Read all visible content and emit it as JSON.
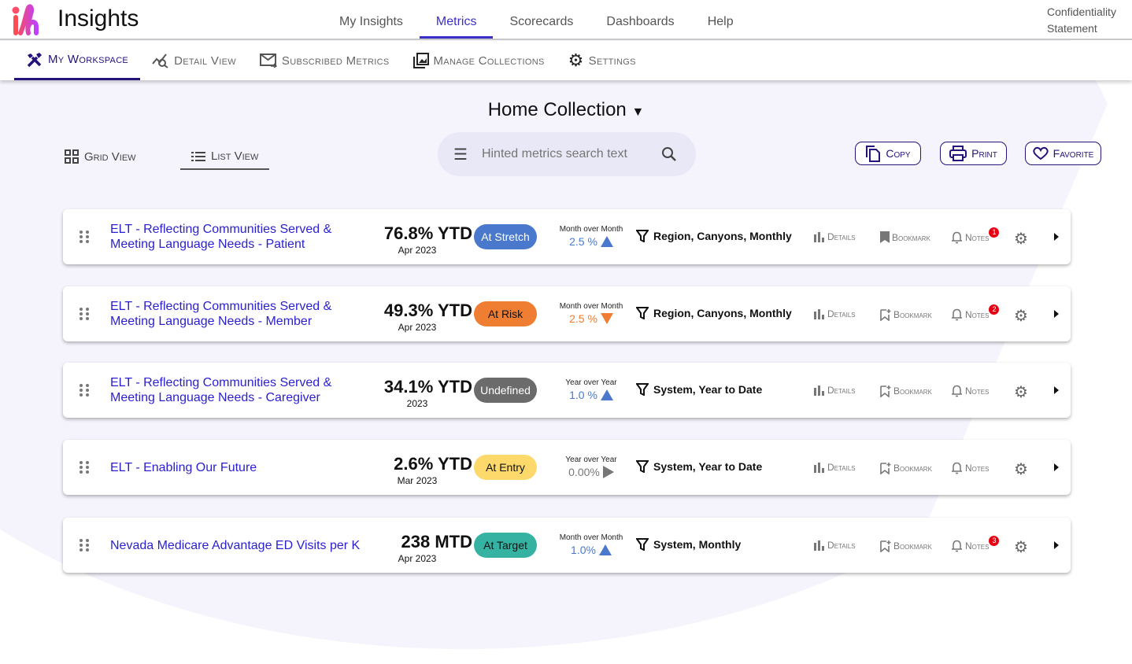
{
  "app": {
    "title": "Insights",
    "confidentiality": "Confidentiality Statement"
  },
  "main_nav": [
    {
      "label": "My Insights"
    },
    {
      "label": "Metrics",
      "active": true
    },
    {
      "label": "Scorecards"
    },
    {
      "label": "Dashboards"
    },
    {
      "label": "Help"
    }
  ],
  "sub_nav": [
    {
      "label": "My Workspace",
      "icon": "tools-icon",
      "active": true
    },
    {
      "label": "Detail View",
      "icon": "chart-search-icon"
    },
    {
      "label": "Subscribed Metrics",
      "icon": "mail-forward-icon"
    },
    {
      "label": "Manage Collections",
      "icon": "collections-icon"
    },
    {
      "label": "Settings",
      "icon": "gear-icon"
    }
  ],
  "collection": {
    "title": "Home Collection"
  },
  "views": {
    "grid": "Grid View",
    "list": "List View",
    "active": "list"
  },
  "search": {
    "placeholder": "Hinted metrics search text"
  },
  "actions": {
    "copy": "Copy",
    "print": "Print",
    "favorite": "Favorite"
  },
  "row_actions": {
    "details": "Details",
    "bookmark": "Bookmark",
    "notes": "Notes"
  },
  "colors": {
    "accent": "#3b2fc9",
    "stretch": "#4a78cc",
    "risk": "#ef7d32",
    "undefined": "#6b6b6b",
    "entry": "#fcd96a",
    "target": "#36b2a3",
    "up": "#4a78cc",
    "down": "#ef7d32",
    "flat": "#777777"
  },
  "metrics": [
    {
      "name": "ELT - Reflecting Communities Served & Meeting Language Needs - Patient",
      "value": "76.8% YTD",
      "date": "Apr 2023",
      "status": "At Stretch",
      "status_key": "stretch",
      "trend_label": "Month over Month",
      "trend_value": "2.5 %",
      "trend_dir": "up",
      "filters": "Region, Canyons, Monthly",
      "bookmarked": true,
      "notes_count": "1"
    },
    {
      "name": "ELT - Reflecting Communities Served & Meeting Language Needs - Member",
      "value": "49.3% YTD",
      "date": "Apr 2023",
      "status": "At Risk",
      "status_key": "risk",
      "trend_label": "Month over Month",
      "trend_value": "2.5 %",
      "trend_dir": "down",
      "filters": "Region, Canyons, Monthly",
      "bookmarked": false,
      "notes_count": "2"
    },
    {
      "name": "ELT - Reflecting Communities Served & Meeting Language Needs - Caregiver",
      "value": "34.1% YTD",
      "date": "2023",
      "status": "Undefined",
      "status_key": "undefined",
      "trend_label": "Year over Year",
      "trend_value": "1.0 %",
      "trend_dir": "up",
      "filters": "System, Year to Date",
      "bookmarked": false,
      "notes_count": null
    },
    {
      "name": "ELT - Enabling Our Future",
      "value": "2.6% YTD",
      "date": "Mar 2023",
      "status": "At Entry",
      "status_key": "entry",
      "trend_label": "Year over Year",
      "trend_value": "0.00%",
      "trend_dir": "flat",
      "filters": "System, Year to Date",
      "bookmarked": false,
      "notes_count": null
    },
    {
      "name": "Nevada Medicare Advantage ED Visits per K",
      "value": "238 MTD",
      "date": "Apr 2023",
      "status": "At Target",
      "status_key": "target",
      "trend_label": "Month over Month",
      "trend_value": "1.0%",
      "trend_dir": "up",
      "filters": "System, Monthly",
      "bookmarked": false,
      "notes_count": "3"
    }
  ]
}
